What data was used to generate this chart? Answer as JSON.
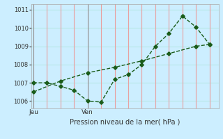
{
  "background_color": "#cceeff",
  "grid_color_v": "#e8a0a0",
  "grid_color_h": "#b8e8e8",
  "line_color": "#1a5c1a",
  "day_labels": [
    {
      "label": "Jeu",
      "x": 0
    },
    {
      "label": "Ven",
      "x": 12
    }
  ],
  "xlabel": "Pression niveau de la mer( hPa )",
  "line1_x": [
    0,
    6,
    12,
    18,
    24,
    30,
    36,
    39
  ],
  "line1_y": [
    1006.5,
    1007.1,
    1007.55,
    1007.85,
    1008.2,
    1008.6,
    1009.0,
    1009.1
  ],
  "line2_x": [
    0,
    3,
    6,
    9,
    12,
    15,
    18,
    21,
    24,
    27,
    30,
    33,
    36,
    39
  ],
  "line2_y": [
    1007.0,
    1007.0,
    1006.8,
    1006.6,
    1006.0,
    1005.95,
    1007.2,
    1007.45,
    1008.0,
    1009.0,
    1009.7,
    1010.65,
    1010.05,
    1009.1
  ],
  "vline_x": [
    0,
    12
  ],
  "ylim": [
    1005.6,
    1011.3
  ],
  "xlim": [
    -0.5,
    41
  ],
  "yticks": [
    1006,
    1007,
    1008,
    1009,
    1010,
    1011
  ],
  "xticks_minor": [
    0,
    3,
    6,
    9,
    12,
    15,
    18,
    21,
    24,
    27,
    30,
    33,
    36,
    39
  ]
}
